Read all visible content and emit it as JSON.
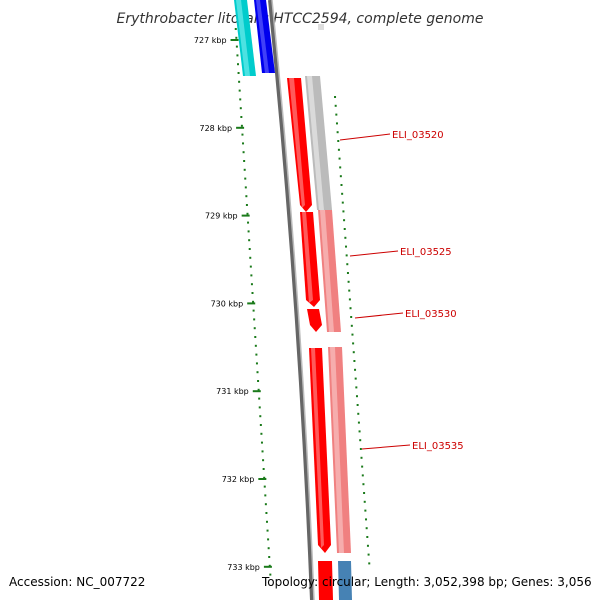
{
  "title": "Erythrobacter litoralis HTCC2594, complete genome",
  "footer": {
    "accession": "Accession: NC_007722",
    "summary": "Topology: circular; Length: 3,052,398 bp; Genes: 3,056"
  },
  "colors": {
    "backbone": "#777777",
    "tick": "#1a7a1a",
    "gene_forward": "#ff0000",
    "gene_forward_light": "#f08080",
    "gene_grey": "#bbbbbb",
    "gene_blue": "#0000ee",
    "gene_cyan": "#00cccc",
    "gene_steel": "#4682b4",
    "label": "#cc0000"
  },
  "ticks": [
    "727 kbp",
    "728 kbp",
    "729 kbp",
    "730 kbp",
    "731 kbp",
    "732 kbp",
    "733 kbp"
  ],
  "gene_labels": [
    "ELI_03520",
    "ELI_03525",
    "ELI_03530",
    "ELI_03535"
  ]
}
